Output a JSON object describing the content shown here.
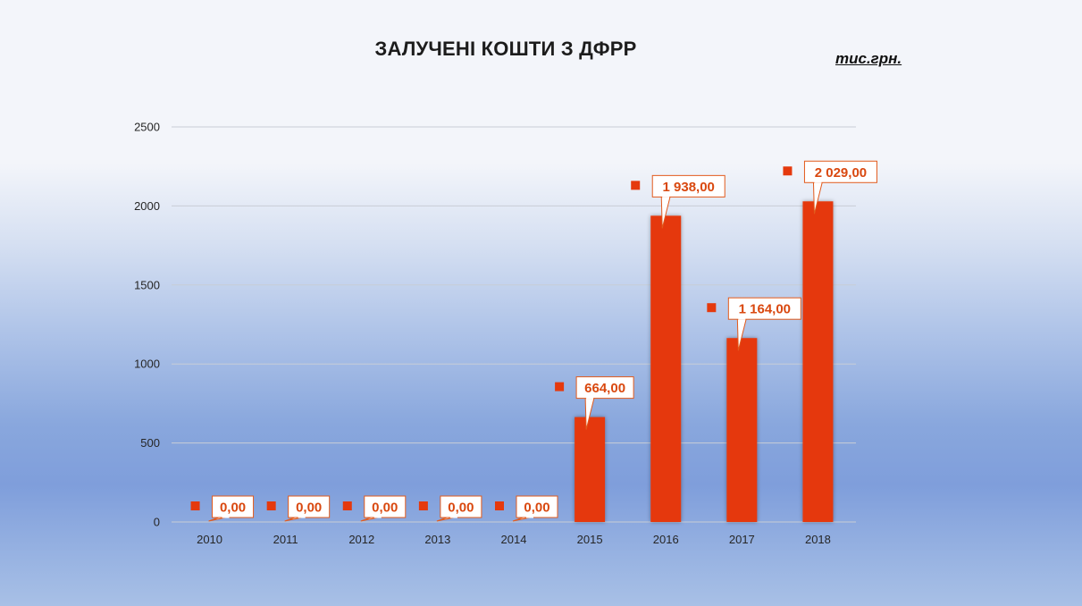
{
  "chart_data": {
    "type": "bar",
    "title": "ЗАЛУЧЕНІ КОШТИ З ДФРР",
    "unit": "тис.грн.",
    "categories": [
      "2010",
      "2011",
      "2012",
      "2013",
      "2014",
      "2015",
      "2016",
      "2017",
      "2018"
    ],
    "values": [
      0,
      0,
      0,
      0,
      0,
      664,
      1938,
      1164,
      2029
    ],
    "data_labels": [
      "0,00",
      "0,00",
      "0,00",
      "0,00",
      "0,00",
      "664,00",
      "1 938,00",
      "1 164,00",
      "2 029,00"
    ],
    "y_ticks": [
      "0",
      "500",
      "1000",
      "1500",
      "2000",
      "2500"
    ],
    "ylim": [
      0,
      2500
    ],
    "xlabel": "",
    "ylabel": "",
    "grid": true,
    "legend": "none",
    "colors": {
      "bar": "#e5390d",
      "label_text": "#d9480f",
      "label_border": "#e25a1c",
      "gridline": "#c8cdd6"
    }
  }
}
